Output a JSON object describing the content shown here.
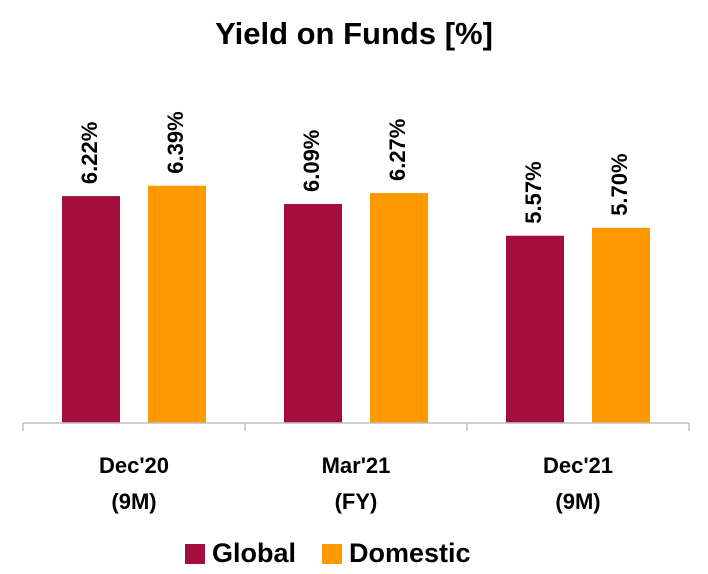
{
  "chart_data": {
    "type": "bar",
    "title": "Yield on Funds [%]",
    "categories": [
      [
        "Dec'20",
        "(9M)"
      ],
      [
        "Mar'21",
        "(FY)"
      ],
      [
        "Dec'21",
        "(9M)"
      ]
    ],
    "series": [
      {
        "name": "Global",
        "color": "#A50E3C",
        "values": [
          6.22,
          6.09,
          5.57
        ],
        "value_labels": [
          "6.22%",
          "6.09%",
          "5.57%"
        ]
      },
      {
        "name": "Domestic",
        "color": "#FF9900",
        "values": [
          6.39,
          6.27,
          5.7
        ],
        "value_labels": [
          "6.39%",
          "6.27%",
          "5.70%"
        ]
      }
    ],
    "ylim": [
      2.5,
      7.5
    ],
    "legend": "bottom"
  }
}
